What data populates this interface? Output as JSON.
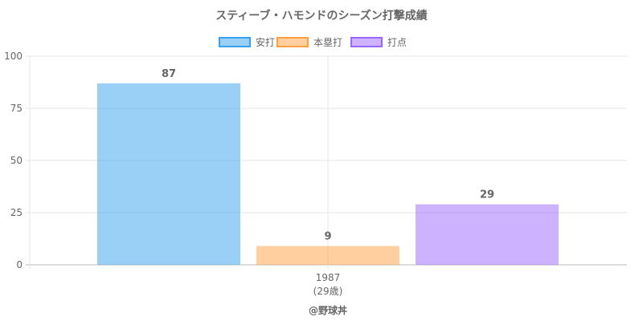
{
  "chart_data": {
    "type": "bar",
    "title": "スティーブ・ハモンドのシーズン打撃成績",
    "categories": [
      "1987"
    ],
    "category_sublabels": [
      "(29歳)"
    ],
    "series": [
      {
        "name": "安打",
        "values": [
          87
        ],
        "color": "#36a2eb"
      },
      {
        "name": "本塁打",
        "values": [
          9
        ],
        "color": "#ff9f40"
      },
      {
        "name": "打点",
        "values": [
          29
        ],
        "color": "#9966ff"
      }
    ],
    "ylim": [
      0,
      100
    ],
    "yticks": [
      "0",
      "25",
      "50",
      "75",
      "100"
    ],
    "grid": true,
    "legend": "top",
    "data_labels": [
      "87",
      "9",
      "29"
    ]
  },
  "footer": "@野球丼"
}
